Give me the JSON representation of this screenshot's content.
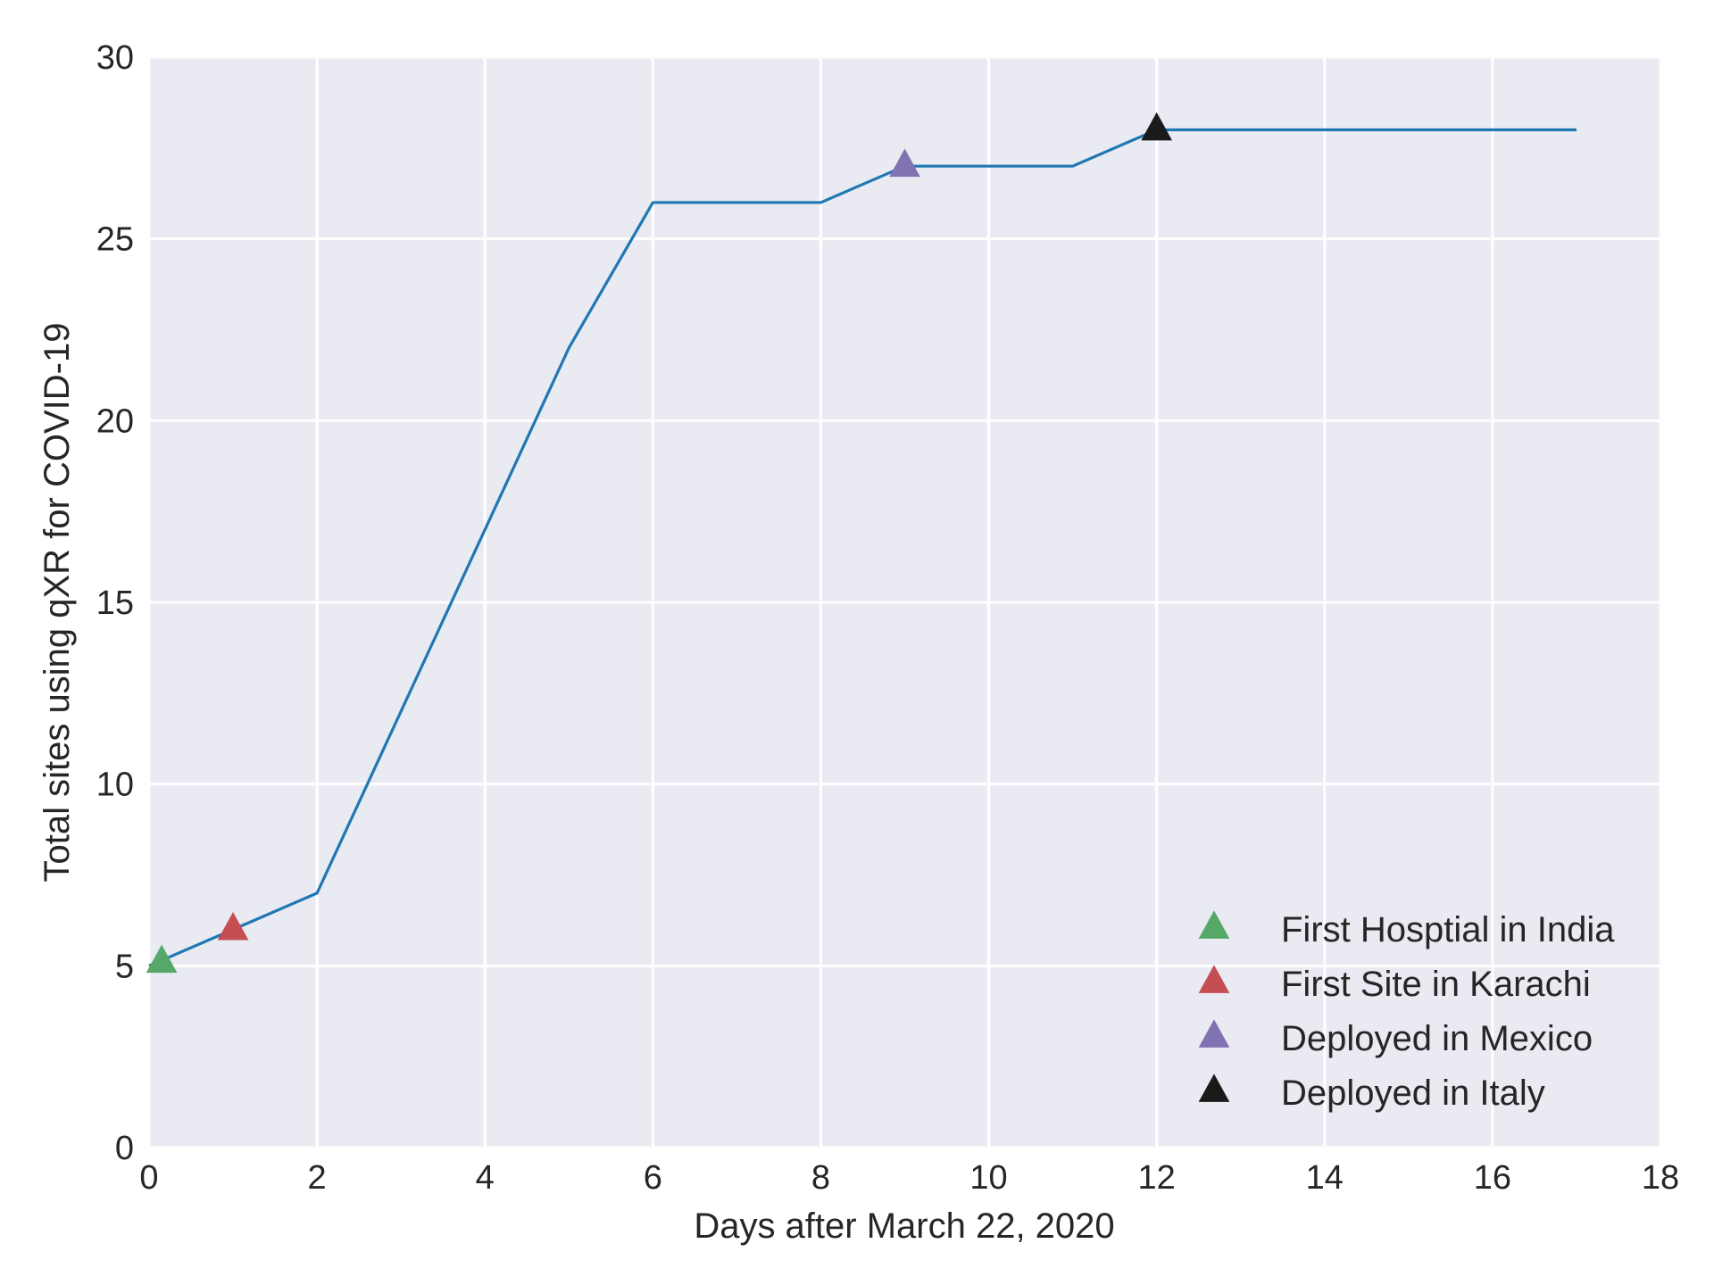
{
  "chart_data": {
    "type": "line",
    "xlabel": "Days after March 22, 2020",
    "ylabel": "Total sites using qXR for COVID-19",
    "xlim": [
      0,
      18
    ],
    "ylim": [
      0,
      30
    ],
    "x_ticks": [
      0,
      2,
      4,
      6,
      8,
      10,
      12,
      14,
      16,
      18
    ],
    "y_ticks": [
      0,
      5,
      10,
      15,
      20,
      25,
      30
    ],
    "x_tick_labels": [
      "0",
      "2",
      "4",
      "6",
      "8",
      "10",
      "12",
      "14",
      "16",
      "18"
    ],
    "y_tick_labels": [
      "0",
      "5",
      "10",
      "15",
      "20",
      "25",
      "30"
    ],
    "grid": true,
    "background_color": "#EAEAF2",
    "series": [
      {
        "x": [
          0,
          1,
          2,
          3,
          4,
          5,
          6,
          7,
          8,
          9,
          10,
          11,
          12,
          13,
          14,
          15,
          16,
          17
        ],
        "y": [
          5,
          6,
          7,
          12,
          17,
          22,
          26,
          26,
          26,
          27,
          27,
          27,
          28,
          28,
          28,
          28,
          28,
          28
        ],
        "color": "#1f77b4"
      }
    ],
    "markers": [
      {
        "name": "First Hosptial in India",
        "x": 0.15,
        "y": 5.1,
        "color": "#55A868",
        "marker": "triangle-up"
      },
      {
        "name": "First Site in Karachi",
        "x": 1,
        "y": 6,
        "color": "#C44E52",
        "marker": "triangle-up"
      },
      {
        "name": "Deployed in Mexico",
        "x": 9,
        "y": 27,
        "color": "#8172B2",
        "marker": "triangle-up"
      },
      {
        "name": "Deployed in Italy",
        "x": 12,
        "y": 28,
        "color": "#1a1a1a",
        "marker": "triangle-up"
      }
    ],
    "legend": {
      "position": "lower-right"
    }
  }
}
